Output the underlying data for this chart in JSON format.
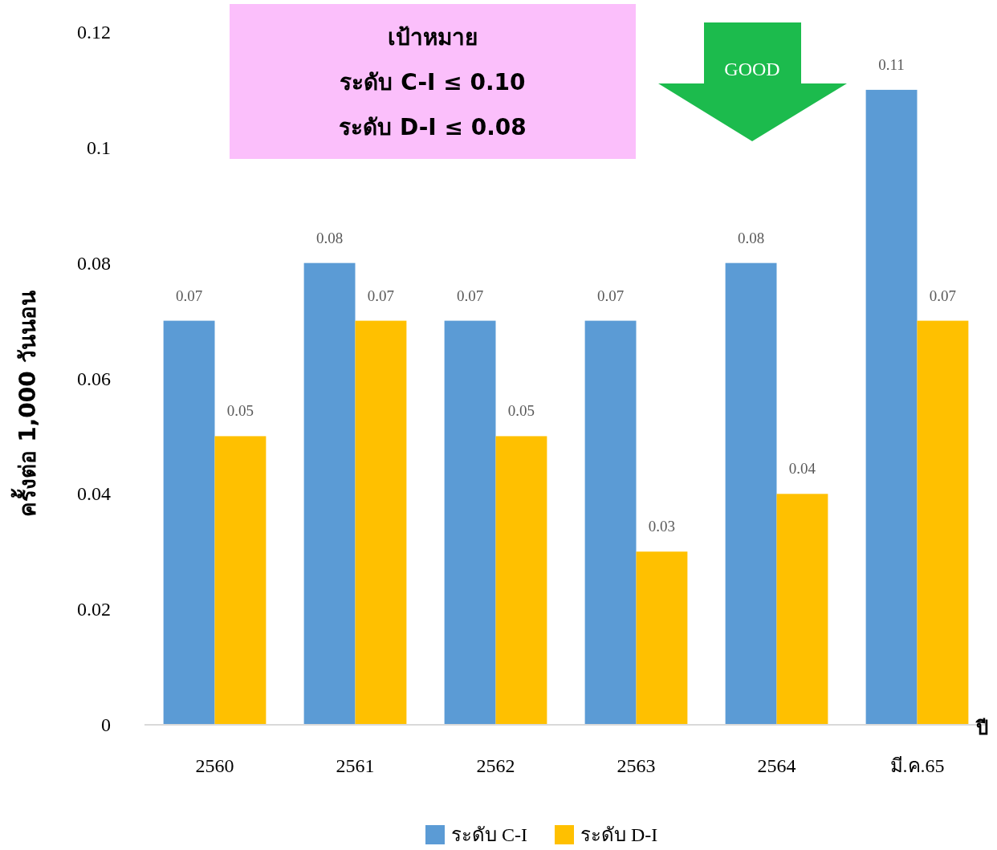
{
  "chart_data": {
    "type": "bar",
    "categories": [
      "2560",
      "2561",
      "2562",
      "2563",
      "2564",
      "มี.ค.65"
    ],
    "series": [
      {
        "name": "ระดับ C-I",
        "color": "#5b9bd5",
        "values": [
          0.07,
          0.08,
          0.07,
          0.07,
          0.08,
          0.11
        ]
      },
      {
        "name": "ระดับ D-I",
        "color": "#ffc000",
        "values": [
          0.05,
          0.07,
          0.05,
          0.03,
          0.04,
          0.07
        ]
      }
    ],
    "ylim": [
      0,
      0.12
    ],
    "yticks": [
      0,
      0.02,
      0.04,
      0.06,
      0.08,
      0.1,
      0.12
    ],
    "xlabel": "ปี",
    "ylabel": "ครั้งต่อ 1,000 วันนอน",
    "annotations": [
      "เป้าหมาย",
      "ระดับ C-I ≤ 0.10",
      "ระดับ D-I ≤ 0.08",
      "GOOD"
    ],
    "data_labels": true,
    "grid": false,
    "legend": "bottom"
  }
}
